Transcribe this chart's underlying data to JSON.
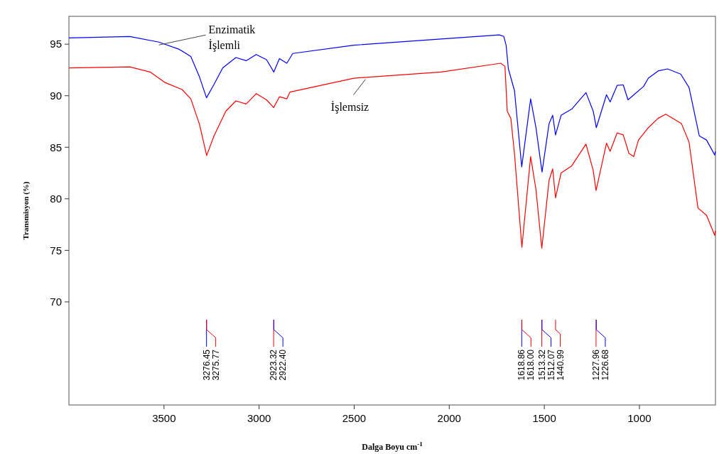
{
  "chart_data": {
    "type": "line",
    "xlabel": "Dalga Boyu cm$^{-1}$",
    "ylabel": "Transmisyon (%)",
    "xlim": [
      4000,
      600
    ],
    "ylim": [
      60,
      97.7
    ],
    "xticks": [
      3500,
      3000,
      2500,
      2000,
      1500,
      1000
    ],
    "yticks": [
      70,
      75,
      80,
      85,
      90,
      95
    ],
    "grid": false,
    "legend": false,
    "marker": "none",
    "line_style": "solid",
    "series": [
      {
        "name": "Enzimatik İşlemli",
        "color": "#0000ff",
        "x": [
          4000,
          3680,
          3527,
          3420,
          3359,
          3313,
          3276.45,
          3237,
          3191,
          3122,
          3068,
          3015,
          2961,
          2922.4,
          2893,
          2854,
          2823,
          2502,
          2043,
          1737,
          1713,
          1701,
          1689,
          1657,
          1618.86,
          1572,
          1544,
          1512.07,
          1475,
          1456,
          1441,
          1412,
          1356,
          1281,
          1243,
          1226.68,
          1173,
          1154,
          1117,
          1085,
          1060,
          1022,
          978,
          953,
          902,
          852,
          783,
          739,
          685,
          647,
          604,
          600
        ],
        "values": [
          95.6,
          95.75,
          95.2,
          94.5,
          93.8,
          91.8,
          89.8,
          91.1,
          92.7,
          93.7,
          93.4,
          94.0,
          93.5,
          92.3,
          93.6,
          93.15,
          94.1,
          94.9,
          95.5,
          95.9,
          95.75,
          94.9,
          92.6,
          90.5,
          83.1,
          89.7,
          86.9,
          82.6,
          87.3,
          88.1,
          86.2,
          88.1,
          88.7,
          90.3,
          88.5,
          86.9,
          90.1,
          89.4,
          91.0,
          91.05,
          89.6,
          90.2,
          90.9,
          91.7,
          92.4,
          92.6,
          92.1,
          90.8,
          86.1,
          85.7,
          84.25,
          84.6
        ]
      },
      {
        "name": "İşlemsiz",
        "color": "#ff0000",
        "x": [
          4000,
          3680,
          3573,
          3497,
          3405,
          3359,
          3313,
          3275.77,
          3237,
          3175,
          3122,
          3068,
          3015,
          2961,
          2923.32,
          2893,
          2854,
          2838,
          2502,
          2043,
          1729,
          1707,
          1695,
          1676,
          1657,
          1618.0,
          1572,
          1544,
          1513.32,
          1475,
          1456,
          1440.99,
          1412,
          1356,
          1281,
          1243,
          1227.96,
          1173,
          1154,
          1117,
          1085,
          1055,
          1030,
          1005,
          953,
          902,
          861,
          779,
          739,
          692,
          647,
          604,
          600
        ],
        "values": [
          92.7,
          92.8,
          92.3,
          91.3,
          90.6,
          89.7,
          87.2,
          84.2,
          86.1,
          88.5,
          89.5,
          89.2,
          90.2,
          89.6,
          88.85,
          89.9,
          89.7,
          90.35,
          91.7,
          92.3,
          93.15,
          92.85,
          88.5,
          87.8,
          84.4,
          75.3,
          84.1,
          80.9,
          75.2,
          81.8,
          82.9,
          80.1,
          82.5,
          83.2,
          85.3,
          82.75,
          80.8,
          85.4,
          84.6,
          86.4,
          86.2,
          84.4,
          84.1,
          85.7,
          86.9,
          87.8,
          88.2,
          87.3,
          85.5,
          79.1,
          78.4,
          76.45,
          76.9
        ]
      }
    ],
    "annotations": [
      "3276.45",
      "3275.77",
      "2923.32",
      "2922.40",
      "1618.86",
      "1618.00",
      "1513.32",
      "1512.07",
      "1440.99",
      "1227.96",
      "1226.68"
    ]
  }
}
